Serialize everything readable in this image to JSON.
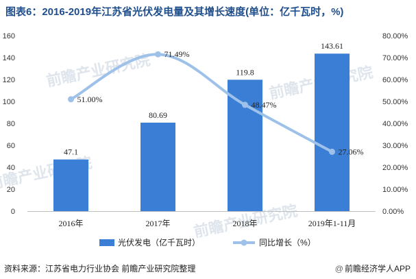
{
  "title": "图表6：2016-2019年江苏省光伏发电量及其增长速度(单位：亿千瓦时，%)",
  "source": "资料来源：江苏省电力行业协会 前瞻产业研究院整理",
  "brand": "前瞻经济学人APP",
  "brand_prefix": "@",
  "watermark": "前瞻产业研究院",
  "chart_data": {
    "type": "bar+line",
    "categories": [
      "2016年",
      "2017年",
      "2018年",
      "2019年1-11月"
    ],
    "series": [
      {
        "name": "光伏发电（亿千瓦时）",
        "kind": "bar",
        "axis": "left",
        "color": "#3a7fd5",
        "values": [
          47.1,
          80.69,
          119.8,
          143.61
        ],
        "labels": [
          "47.1",
          "80.69",
          "119.8",
          "143.61"
        ]
      },
      {
        "name": "同比增长（%）",
        "kind": "line",
        "axis": "right",
        "color": "#9ec1ea",
        "values": [
          51.0,
          71.49,
          48.47,
          27.06
        ],
        "labels": [
          "51.00%",
          "71.49%",
          "48.47%",
          "27.06%"
        ]
      }
    ],
    "y_left": {
      "range": [
        0,
        160
      ],
      "ticks": [
        "0",
        "20",
        "40",
        "60",
        "80",
        "100",
        "120",
        "140",
        "160"
      ]
    },
    "y_right": {
      "range": [
        0,
        80
      ],
      "ticks": [
        "0.00%",
        "10.00%",
        "20.00%",
        "30.00%",
        "40.00%",
        "50.00%",
        "60.00%",
        "70.00%",
        "80.00%"
      ]
    },
    "grid": false,
    "legend": "bottom"
  }
}
